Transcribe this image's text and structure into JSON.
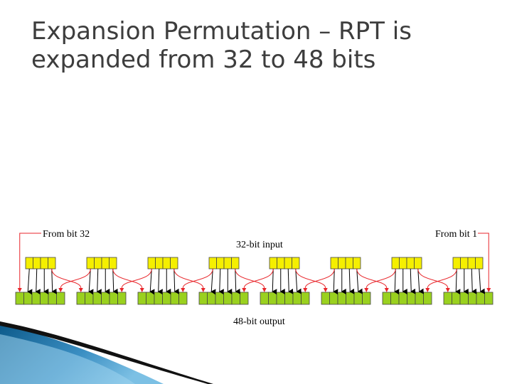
{
  "slide": {
    "title_line1": "Expansion Permutation – RPT is",
    "title_line2": "expanded from 32 to 48 bits"
  },
  "diagram": {
    "from_left_label": "From bit 32",
    "from_right_label": "From bit 1",
    "input_label": "32-bit input",
    "output_label": "48-bit output",
    "input_blocks": 8,
    "bits_per_input_block": 4,
    "output_blocks": 8,
    "bits_per_output_block": 6,
    "colors": {
      "input_fill": "#f5ef00",
      "output_fill": "#9ad11f",
      "cell_stroke": "#444444",
      "arrow": "#000000",
      "cross_arrow": "#e8262b"
    }
  },
  "decor": {
    "colors": {
      "wave_dark": "#0d5a8a",
      "wave_light": "#7cc0e4",
      "wave_black": "#111111"
    }
  }
}
